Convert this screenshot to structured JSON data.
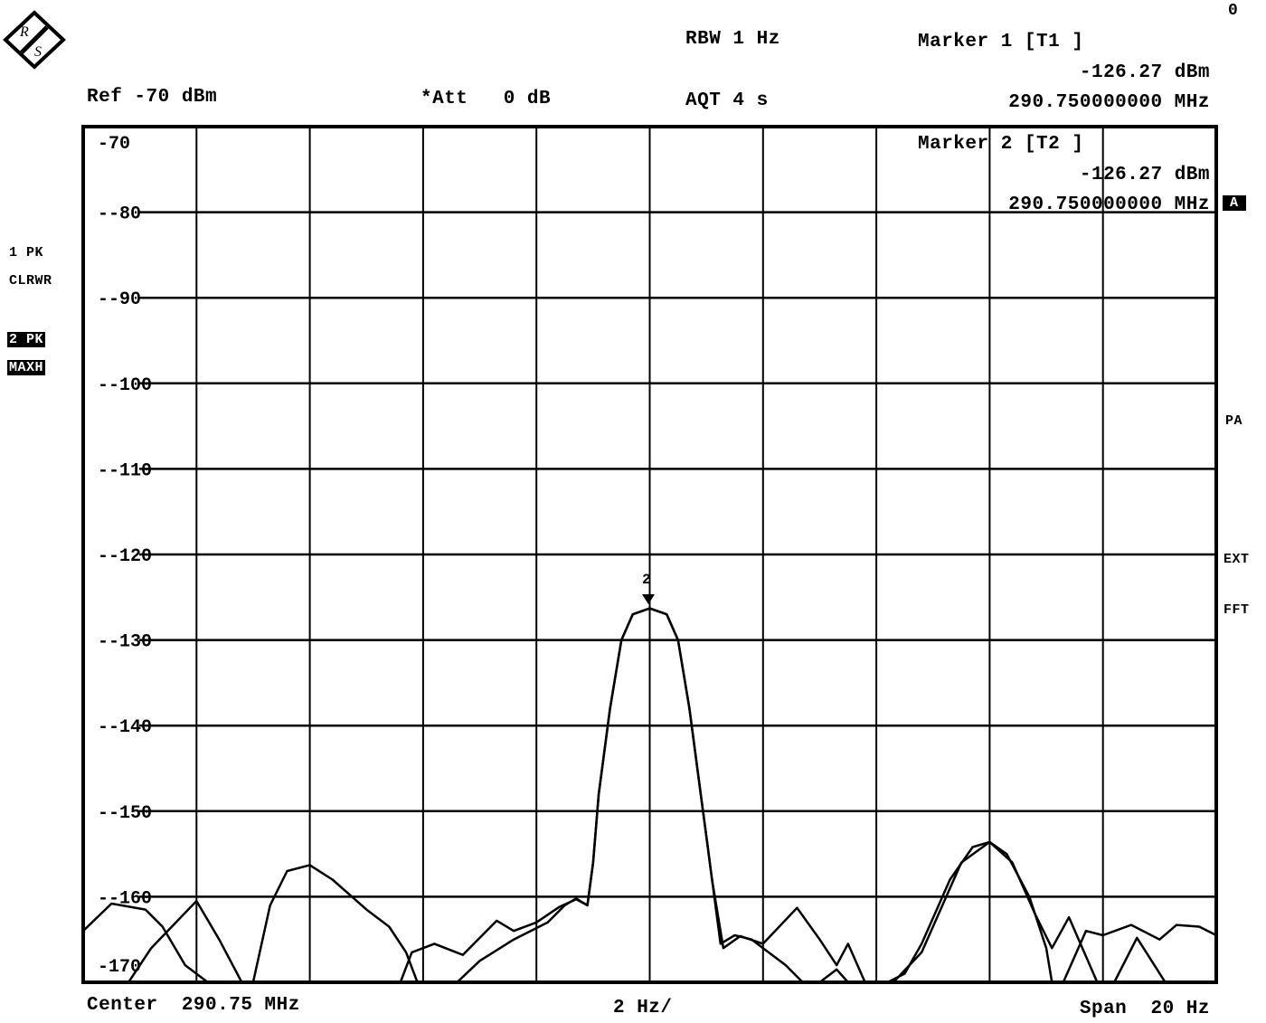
{
  "header": {
    "logo_text": "R&S",
    "rbw": "RBW 1 Hz",
    "aqt": "AQT 4 s",
    "ref": "Ref -70 dBm",
    "att": "*Att   0 dB",
    "corner_mark": "0"
  },
  "markers": [
    {
      "title": "Marker 1 [T1 ]",
      "level": "-126.27 dBm",
      "freq": "290.750000000 MHz"
    },
    {
      "title": "Marker 2 [T2 ]",
      "level": "-126.27 dBm",
      "freq": "290.750000000 MHz"
    }
  ],
  "marker_symbol": "2",
  "left_labels": {
    "trace1": "1 PK",
    "trace1_mode": "CLRWR",
    "trace2": "2 PK",
    "trace2_mode": "MAXH"
  },
  "right_labels": {
    "a_box": "A",
    "pa": "PA",
    "ext": "EXT",
    "fft": "FFT"
  },
  "footer": {
    "center": "Center  290.75 MHz",
    "div": "2 Hz/",
    "span": "Span  20 Hz"
  },
  "chart_data": {
    "type": "line",
    "title": "",
    "xlabel": "",
    "ylabel": "",
    "x_unit": "Hz",
    "xlim": [
      290749990,
      290750010
    ],
    "ylim": [
      -170,
      -70
    ],
    "yticks": [
      "-70",
      "-80",
      "-90",
      "-100",
      "-110",
      "-120",
      "-130",
      "-140",
      "-150",
      "-160",
      "-170"
    ],
    "grid": true,
    "trace_color": "#000000",
    "series": [
      {
        "x": [
          290749990,
          290749990.8,
          290749991.2,
          290749992,
          290749992.4,
          290749992.8,
          290749993,
          290749993.3,
          290749993.6,
          290749994,
          290749994.4,
          290749995,
          290749995.4,
          290749995.7,
          290749995.9,
          290749996.6,
          290749997,
          290749997.6,
          290749998.2,
          290749998.5,
          290749998.7,
          290749998.9,
          290749999,
          290749999.1,
          290749999.3,
          290749999.5,
          290749999.7,
          290750000,
          290750000.3,
          290750000.5,
          290750000.7,
          290750000.9,
          290750001,
          290750001.1,
          290750001.25,
          290750001.5,
          290750001.8,
          290750002,
          290750002.4,
          290750002.7,
          290750003,
          290750003.3,
          290750003.5,
          290750004.2,
          290750004.5,
          290750004.8,
          290750005.3,
          290750005.7,
          290750006,
          290750006.3,
          290750006.7,
          290750007,
          290750007.1,
          290750007.3,
          290750007.7,
          290750008,
          290750008.5,
          290750009,
          290750009.3,
          290750009.7,
          290750010
        ],
        "y": [
          -170,
          -170,
          -166,
          -160.5,
          -165,
          -170,
          -170,
          -161,
          -157,
          -156.3,
          -158,
          -161.5,
          -163.5,
          -166.5,
          -170,
          -170,
          -167.5,
          -165,
          -163,
          -161,
          -160.2,
          -161,
          -156,
          -148,
          -138,
          -130,
          -127,
          -126.3,
          -127,
          -130,
          -138,
          -148,
          -153,
          -158,
          -165.5,
          -164.5,
          -165,
          -166,
          -168,
          -170,
          -170,
          -168.5,
          -170,
          -170,
          -169,
          -165.5,
          -158,
          -154.2,
          -153.6,
          -155,
          -160,
          -166,
          -170,
          -170,
          -164,
          -164.5,
          -163.3,
          -165,
          -163.3,
          -163.5,
          -164.5
        ]
      },
      {
        "x": [
          290749990,
          290749990.5,
          290749991.1,
          290749991.4,
          290749991.8,
          290749992.2,
          290749995.6,
          290749995.8,
          290749996.2,
          290749996.7,
          290749997.3,
          290749997.6,
          290749998,
          290749998.4,
          290749998.7,
          290749998.9,
          290749999,
          290749999.1,
          290749999.3,
          290749999.5,
          290749999.7,
          290750000,
          290750000.3,
          290750000.5,
          290750000.7,
          290750000.9,
          290750001,
          290750001.1,
          290750001.3,
          290750001.6,
          290750002,
          290750002.6,
          290750003,
          290750003.3,
          290750003.5,
          290750003.8,
          290750004.3,
          290750004.8,
          290750005.5,
          290750006,
          290750006.4,
          290750006.8,
          290750007.1,
          290750007.4,
          290750007.9,
          290750008.2,
          290750008.6,
          290750009.1,
          290750009.5,
          290750010
        ],
        "y": [
          -164,
          -160.8,
          -161.5,
          -163.5,
          -168,
          -170,
          -170,
          -166.5,
          -165.5,
          -166.8,
          -162.8,
          -164,
          -163,
          -161.2,
          -160.3,
          -161,
          -156,
          -148,
          -138,
          -130,
          -127,
          -126.3,
          -127,
          -130,
          -138,
          -148,
          -153,
          -158,
          -166,
          -164.6,
          -165.5,
          -161.3,
          -165,
          -168,
          -165.5,
          -170,
          -170,
          -166.5,
          -156,
          -153.6,
          -156,
          -162,
          -166,
          -162.4,
          -170,
          -170,
          -164.8,
          -170,
          -170,
          -170
        ]
      }
    ]
  }
}
